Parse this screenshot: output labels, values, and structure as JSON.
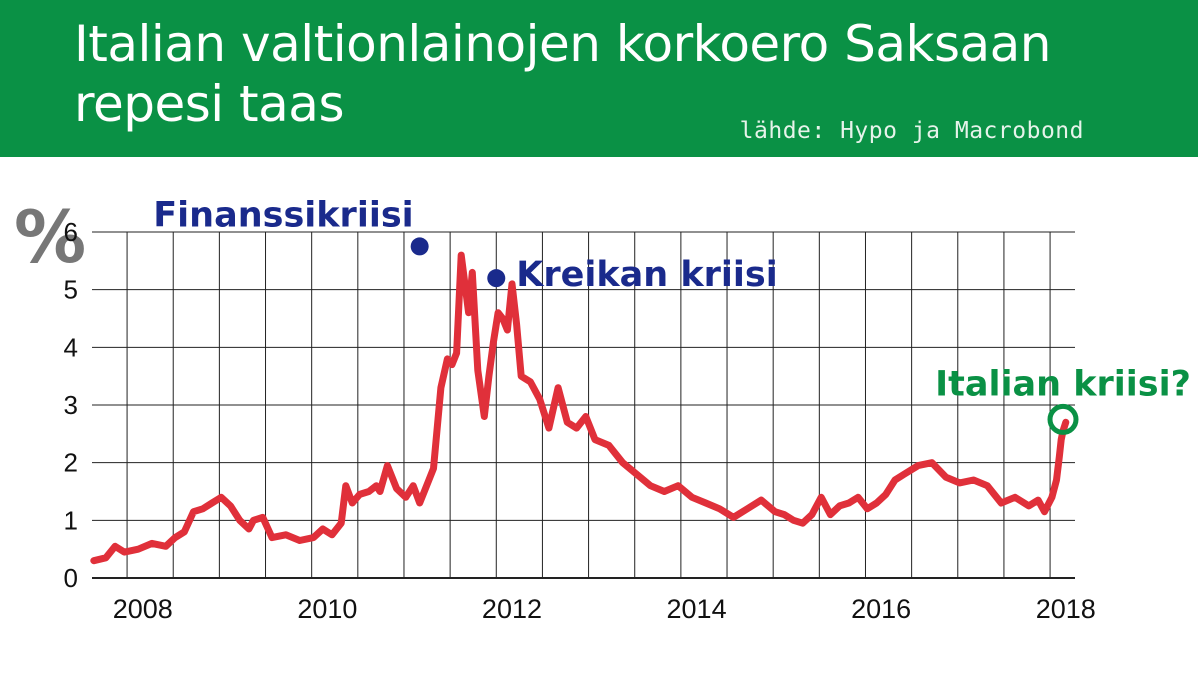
{
  "header": {
    "title_line1": "Italian valtionlainojen korkoero Saksaan",
    "title_line2": "repesi taas",
    "source": "lähde: Hypo ja Macrobond"
  },
  "colors": {
    "header_bg": "#0a9145",
    "line": "#e0303a",
    "annotation_blue": "#1a2a8c",
    "annotation_green": "#0a9145",
    "grid": "#222222"
  },
  "chart_data": {
    "type": "line",
    "unit_label": "%",
    "ylim": [
      0,
      6
    ],
    "yticks": [
      0,
      1,
      2,
      3,
      4,
      5,
      6
    ],
    "xlim": [
      2007.6,
      2018.25
    ],
    "xticks": [
      2008,
      2010,
      2012,
      2014,
      2016,
      2018
    ],
    "grid": true,
    "series": [
      {
        "x": [
          2007.62,
          2007.75,
          2007.85,
          2007.95,
          2008.1,
          2008.25,
          2008.4,
          2008.5,
          2008.6,
          2008.7,
          2008.8,
          2008.9,
          2009.0,
          2009.1,
          2009.2,
          2009.3,
          2009.35,
          2009.45,
          2009.55,
          2009.7,
          2009.85,
          2010.0,
          2010.1,
          2010.2,
          2010.3,
          2010.35,
          2010.42,
          2010.5,
          2010.6,
          2010.68,
          2010.72,
          2010.8,
          2010.9,
          2011.0,
          2011.08,
          2011.15,
          2011.2,
          2011.25,
          2011.3,
          2011.38,
          2011.45,
          2011.5,
          2011.55,
          2011.6,
          2011.68,
          2011.72,
          2011.78,
          2011.85,
          2011.9,
          2011.95,
          2012.0,
          2012.05,
          2012.1,
          2012.15,
          2012.2,
          2012.25,
          2012.35,
          2012.45,
          2012.55,
          2012.65,
          2012.75,
          2012.85,
          2012.95,
          2013.05,
          2013.2,
          2013.35,
          2013.5,
          2013.65,
          2013.8,
          2013.95,
          2014.1,
          2014.25,
          2014.4,
          2014.55,
          2014.7,
          2014.85,
          2015.0,
          2015.1,
          2015.2,
          2015.3,
          2015.4,
          2015.5,
          2015.6,
          2015.7,
          2015.8,
          2015.9,
          2016.0,
          2016.1,
          2016.2,
          2016.3,
          2016.4,
          2016.55,
          2016.7,
          2016.85,
          2017.0,
          2017.15,
          2017.3,
          2017.45,
          2017.6,
          2017.75,
          2017.85,
          2017.92,
          2018.0,
          2018.05,
          2018.08,
          2018.1,
          2018.12,
          2018.15
        ],
        "values": [
          0.3,
          0.35,
          0.55,
          0.45,
          0.5,
          0.6,
          0.55,
          0.7,
          0.8,
          1.15,
          1.2,
          1.3,
          1.4,
          1.25,
          1.0,
          0.85,
          1.0,
          1.05,
          0.7,
          0.75,
          0.65,
          0.7,
          0.85,
          0.75,
          0.95,
          1.6,
          1.3,
          1.45,
          1.5,
          1.6,
          1.5,
          1.95,
          1.55,
          1.4,
          1.6,
          1.3,
          1.5,
          1.7,
          1.9,
          3.3,
          3.8,
          3.7,
          3.9,
          5.6,
          4.6,
          5.3,
          3.6,
          2.8,
          3.5,
          4.1,
          4.6,
          4.5,
          4.3,
          5.1,
          4.4,
          3.5,
          3.4,
          3.1,
          2.6,
          3.3,
          2.7,
          2.6,
          2.8,
          2.4,
          2.3,
          2.0,
          1.8,
          1.6,
          1.5,
          1.6,
          1.4,
          1.3,
          1.2,
          1.05,
          1.2,
          1.35,
          1.15,
          1.1,
          1.0,
          0.95,
          1.1,
          1.4,
          1.1,
          1.25,
          1.3,
          1.4,
          1.2,
          1.3,
          1.45,
          1.7,
          1.8,
          1.95,
          2.0,
          1.75,
          1.65,
          1.7,
          1.6,
          1.3,
          1.4,
          1.25,
          1.35,
          1.15,
          1.4,
          1.7,
          2.1,
          2.4,
          2.55,
          2.7
        ]
      }
    ],
    "annotations": [
      {
        "text": "Finanssikriisi",
        "x": 2011.15,
        "y": 5.75,
        "color": "blue"
      },
      {
        "text": "Kreikan kriisi",
        "x": 2011.98,
        "y": 5.2,
        "color": "blue"
      },
      {
        "text": "Italian kriisi?",
        "x": 2018.12,
        "y": 2.75,
        "color": "green"
      }
    ]
  }
}
